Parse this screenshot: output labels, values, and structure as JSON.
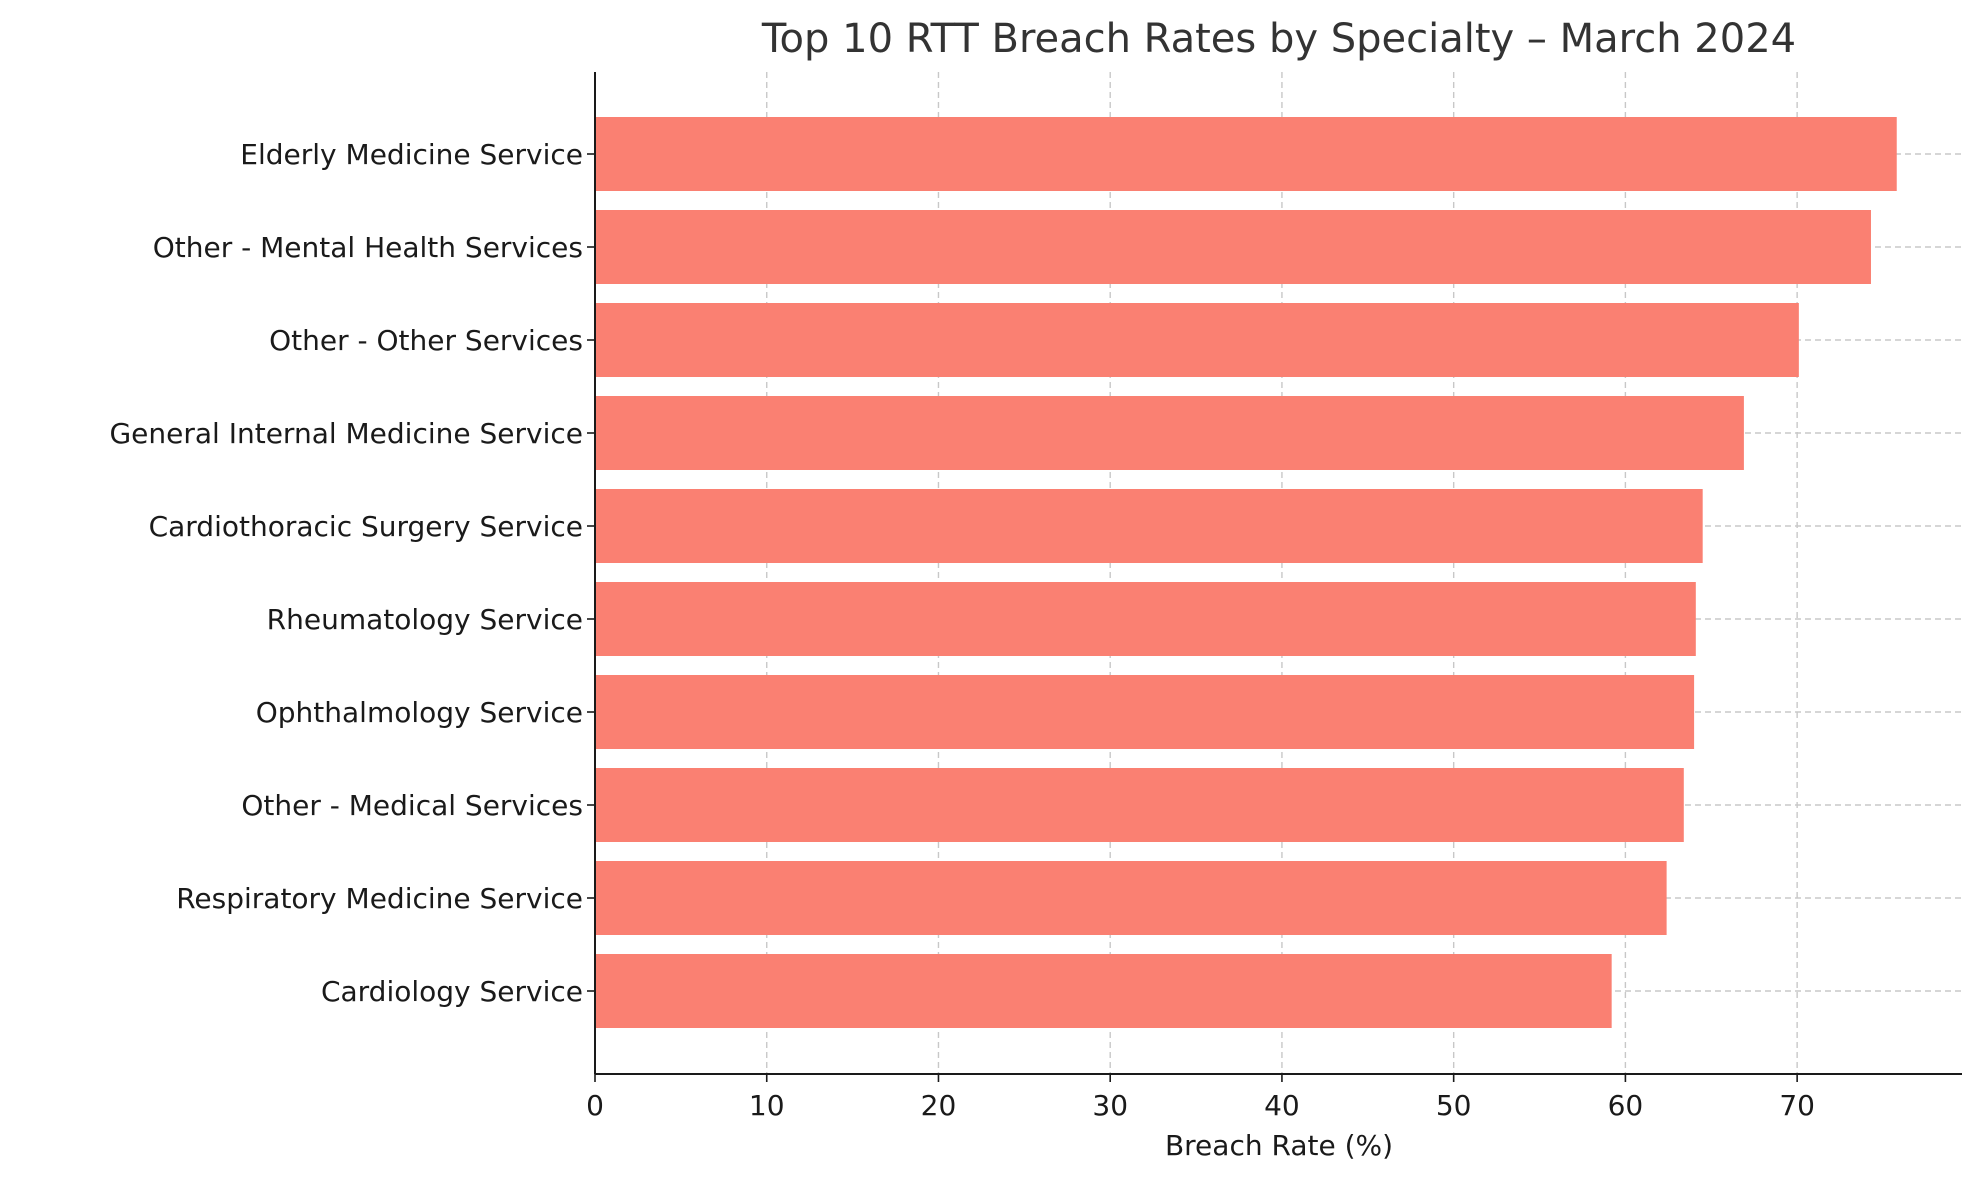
{
  "chart_data": {
    "type": "bar",
    "orientation": "horizontal",
    "title": "Top 10 RTT Breach Rates by Specialty – March 2024",
    "xlabel": "Breach Rate (%)",
    "ylabel": "",
    "categories": [
      "Elderly Medicine Service",
      "Other - Mental Health Services",
      "Other - Other Services",
      "General Internal Medicine Service",
      "Cardiothoracic Surgery Service",
      "Rheumatology Service",
      "Ophthalmology Service",
      "Other - Medical Services",
      "Respiratory Medicine Service",
      "Cardiology Service"
    ],
    "values": [
      75.8,
      74.3,
      70.1,
      66.9,
      64.5,
      64.1,
      64.0,
      63.4,
      62.4,
      59.2
    ],
    "xlim": [
      0,
      79.6
    ],
    "xticks": [
      0,
      10,
      20,
      30,
      40,
      50,
      60,
      70
    ],
    "grid": true,
    "bar_color": "#fa8072"
  }
}
